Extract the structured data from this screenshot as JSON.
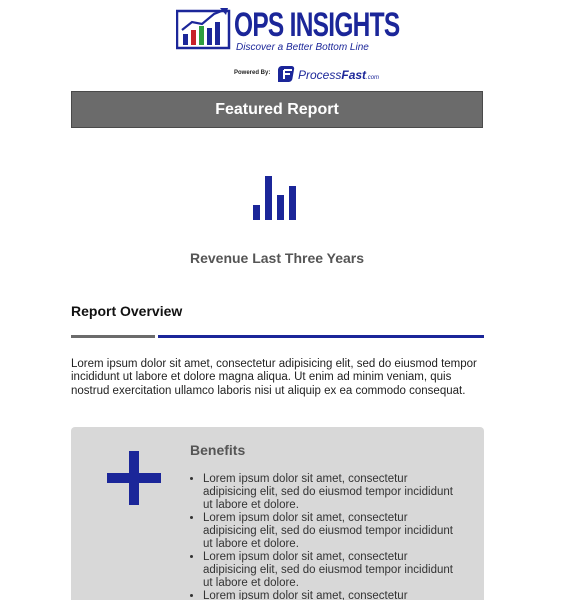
{
  "header": {
    "logo_title": "OPS INSIGHTS",
    "logo_tagline": "Discover a Better Bottom Line",
    "powered_label": "Powered By:",
    "partner_name_part1": "Process",
    "partner_name_part2": "Fast",
    "partner_domain": ".com"
  },
  "banner": {
    "title": "Featured Report"
  },
  "report": {
    "icon": "bar-chart-icon",
    "title": "Revenue Last Three Years"
  },
  "overview": {
    "heading": "Report Overview",
    "text": "Lorem ipsum dolor sit amet, consectetur adipisicing elit, sed do eiusmod tempor incididunt ut labore et dolore magna aliqua. Ut enim ad minim veniam, quis nostrud exercitation ullamco laboris nisi ut aliquip ex ea commodo consequat."
  },
  "benefits": {
    "icon": "plus-icon",
    "title": "Benefits",
    "items": [
      "Lorem ipsum dolor sit amet, consectetur adipisicing elit, sed do eiusmod tempor incididunt ut labore et dolore.",
      "Lorem ipsum dolor sit amet, consectetur adipisicing elit, sed do eiusmod tempor incididunt ut labore et dolore.",
      "Lorem ipsum dolor sit amet, consectetur adipisicing elit, sed do eiusmod tempor incididunt ut labore et dolore.",
      "Lorem ipsum dolor sit amet, consectetur adipisicing elit, sed do eiusmod tempor incididunt ut labore et dolore."
    ]
  },
  "colors": {
    "brand_blue": "#1b2699",
    "banner_gray": "#6b6b6b",
    "box_gray": "#d8d8d8",
    "logo_green": "#2e9e3e",
    "logo_red": "#c8202a"
  }
}
